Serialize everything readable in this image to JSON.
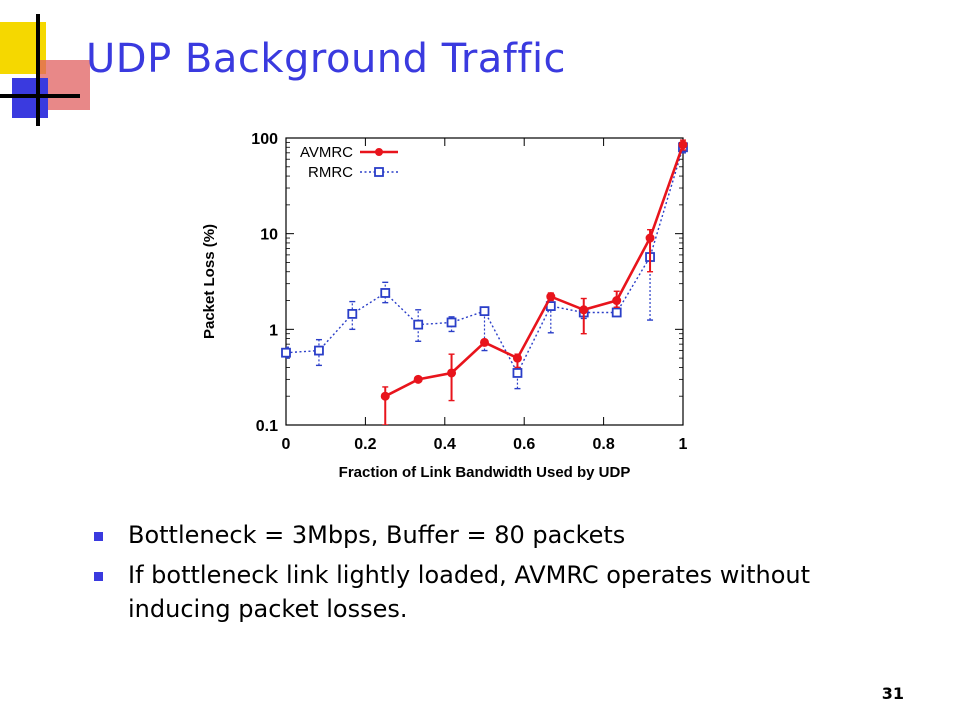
{
  "slide": {
    "title": "UDP Background Traffic",
    "slide_number": "31",
    "bullets": [
      "Bottleneck = 3Mbps, Buffer = 80 packets",
      "If bottleneck link lightly loaded, AVMRC operates without inducing packet losses."
    ],
    "colors": {
      "title": "#3a3adf",
      "bullet": "#3a3adf",
      "deco_yellow": "#f5d800",
      "deco_blue": "#3a3adf",
      "deco_red": "#e06060"
    }
  },
  "chart_data": {
    "type": "line",
    "xlabel": "Fraction of Link Bandwidth Used by UDP",
    "ylabel": "Packet Loss (%)",
    "xlim": [
      0,
      1
    ],
    "ylim": [
      0.1,
      100
    ],
    "yscale": "log",
    "xticks": [
      "0",
      "0.2",
      "0.4",
      "0.6",
      "0.8",
      "1"
    ],
    "xtick_values": [
      0,
      0.2,
      0.4,
      0.6,
      0.8,
      1
    ],
    "yticks": [
      "0.1",
      "1",
      "10",
      "100"
    ],
    "ytick_values": [
      0.1,
      1,
      10,
      100
    ],
    "grid": false,
    "legend_position": "top-left",
    "series": [
      {
        "name": "AVMRC",
        "color": "#e8141c",
        "marker": "filled-circle",
        "line": "solid",
        "points": [
          {
            "x": 0.25,
            "y": 0.2,
            "lo": 0.1,
            "hi": 0.25
          },
          {
            "x": 0.333,
            "y": 0.3,
            "lo": 0.29,
            "hi": 0.31
          },
          {
            "x": 0.417,
            "y": 0.35,
            "lo": 0.18,
            "hi": 0.55
          },
          {
            "x": 0.5,
            "y": 0.73,
            "lo": 0.68,
            "hi": 0.78
          },
          {
            "x": 0.583,
            "y": 0.5,
            "lo": 0.4,
            "hi": 0.55
          },
          {
            "x": 0.667,
            "y": 2.2,
            "lo": 2.0,
            "hi": 2.4
          },
          {
            "x": 0.75,
            "y": 1.6,
            "lo": 0.9,
            "hi": 2.1
          },
          {
            "x": 0.833,
            "y": 2.0,
            "lo": 1.7,
            "hi": 2.5
          },
          {
            "x": 0.917,
            "y": 9.0,
            "lo": 4.0,
            "hi": 11.0
          },
          {
            "x": 1.0,
            "y": 85.0,
            "lo": 75.0,
            "hi": 95.0
          }
        ]
      },
      {
        "name": "RMRC",
        "color": "#2a3ec8",
        "marker": "open-square",
        "line": "dotted",
        "points": [
          {
            "x": 0.0,
            "y": 0.57,
            "lo": 0.5,
            "hi": 0.65
          },
          {
            "x": 0.083,
            "y": 0.6,
            "lo": 0.42,
            "hi": 0.78
          },
          {
            "x": 0.167,
            "y": 1.45,
            "lo": 1.0,
            "hi": 1.95
          },
          {
            "x": 0.25,
            "y": 2.4,
            "lo": 1.9,
            "hi": 3.1
          },
          {
            "x": 0.333,
            "y": 1.12,
            "lo": 0.75,
            "hi": 1.6
          },
          {
            "x": 0.417,
            "y": 1.18,
            "lo": 0.95,
            "hi": 1.35
          },
          {
            "x": 0.5,
            "y": 1.55,
            "lo": 0.6,
            "hi": 1.6
          },
          {
            "x": 0.583,
            "y": 0.35,
            "lo": 0.24,
            "hi": 0.48
          },
          {
            "x": 0.667,
            "y": 1.75,
            "lo": 0.92,
            "hi": 2.1
          },
          {
            "x": 0.75,
            "y": 1.5,
            "lo": 1.3,
            "hi": 1.7
          },
          {
            "x": 0.833,
            "y": 1.5,
            "lo": 1.4,
            "hi": 1.7
          },
          {
            "x": 0.917,
            "y": 5.7,
            "lo": 1.25,
            "hi": 9.0
          },
          {
            "x": 1.0,
            "y": 80.0,
            "lo": 70.0,
            "hi": 90.0
          }
        ]
      }
    ]
  }
}
